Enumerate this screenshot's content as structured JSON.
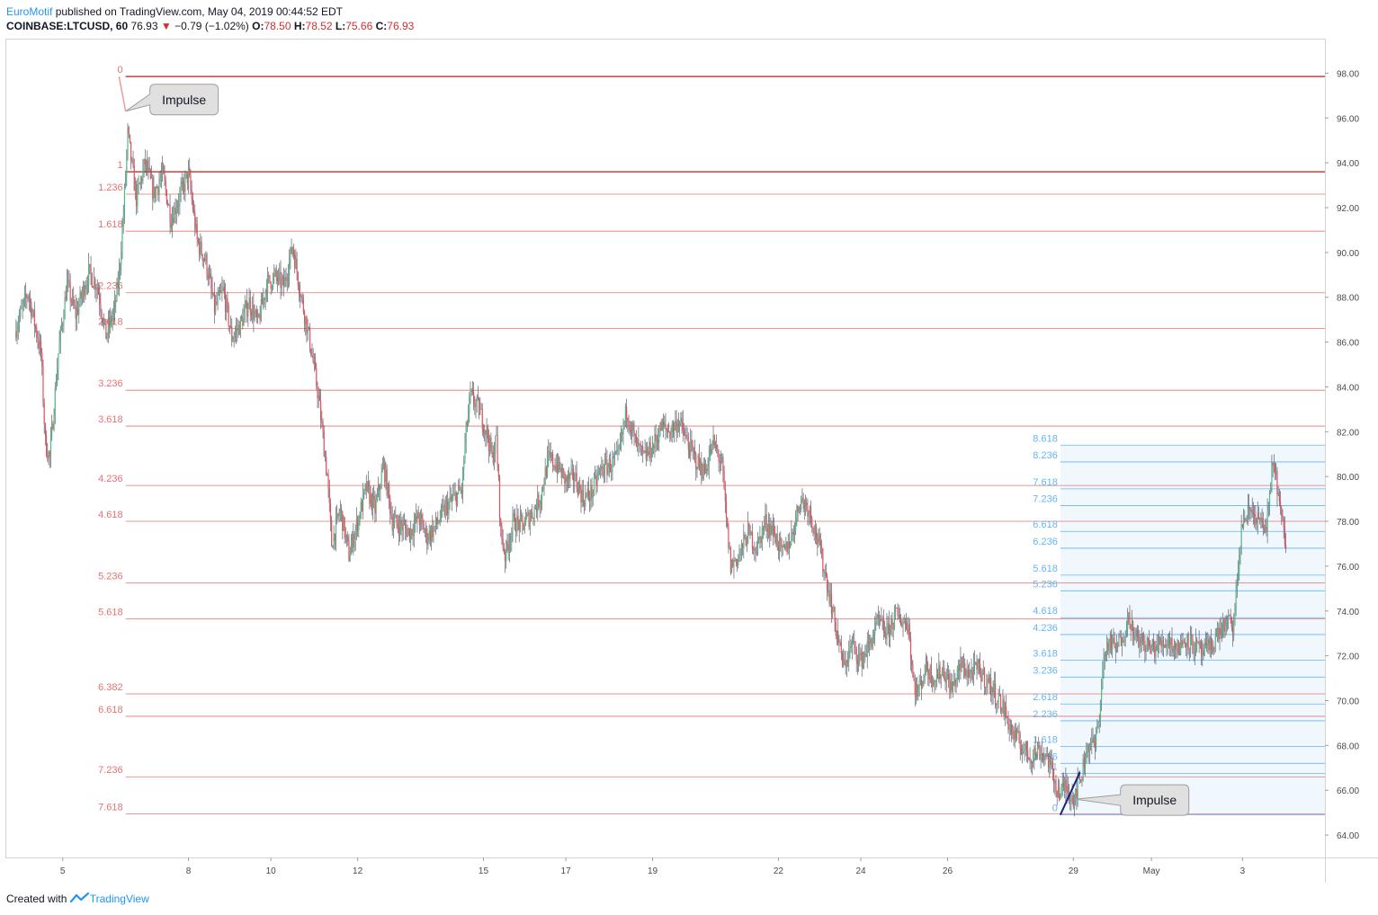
{
  "header": {
    "author": "EuroMotif",
    "published": " published on TradingView.com, May 04, 2019 00:44:52 EDT",
    "symbol": "COINBASE:LTCUSD, 60",
    "last": "76.93",
    "change": "−0.79 (−1.02%)",
    "o_label": "O:",
    "o_val": "78.50",
    "h_label": "H:",
    "h_val": "78.52",
    "l_label": "L:",
    "l_val": "75.66",
    "c_label": "C:",
    "c_val": "76.93",
    "down_arrow": "▼"
  },
  "footer": {
    "created_with": "Created with",
    "brand": "TradingView"
  },
  "chart_data": {
    "type": "candlestick",
    "symbol": "COINBASE:LTCUSD",
    "interval": "60",
    "ylim": [
      63,
      99.5
    ],
    "xlim": [
      -2,
      302
    ],
    "y_ticks": [
      64,
      66,
      68,
      70,
      72,
      74,
      76,
      78,
      80,
      82,
      84,
      86,
      88,
      90,
      92,
      94,
      96,
      98
    ],
    "y_tick_labels": [
      "64.00",
      "66.00",
      "68.00",
      "70.00",
      "72.00",
      "74.00",
      "76.00",
      "78.00",
      "80.00",
      "82.00",
      "84.00",
      "86.00",
      "88.00",
      "90.00",
      "92.00",
      "94.00",
      "96.00",
      "98.00"
    ],
    "x_ticks": [
      {
        "t": 11,
        "label": "5"
      },
      {
        "t": 40,
        "label": "8"
      },
      {
        "t": 59,
        "label": "10"
      },
      {
        "t": 79,
        "label": "12"
      },
      {
        "t": 108,
        "label": "15"
      },
      {
        "t": 127,
        "label": "17"
      },
      {
        "t": 147,
        "label": "19"
      },
      {
        "t": 176,
        "label": "22"
      },
      {
        "t": 195,
        "label": "24"
      },
      {
        "t": 215,
        "label": "26"
      },
      {
        "t": 244,
        "label": "29"
      },
      {
        "t": 262,
        "label": "May"
      },
      {
        "t": 283,
        "label": "3"
      }
    ],
    "colors": {
      "up": "#53b987",
      "down": "#eb4d5c",
      "fib_red": "#e57373",
      "fib_blue": "#64b5f6",
      "trend": "#1a237e"
    },
    "price_path": [
      [
        0,
        86.5
      ],
      [
        3,
        88.2
      ],
      [
        6,
        85.5
      ],
      [
        7,
        81.5
      ],
      [
        8,
        80.8
      ],
      [
        10,
        85.5
      ],
      [
        12,
        88.6
      ],
      [
        14,
        87.2
      ],
      [
        17,
        89.1
      ],
      [
        19,
        88.5
      ],
      [
        21,
        86.3
      ],
      [
        23,
        87.5
      ],
      [
        24,
        89.0
      ],
      [
        25,
        91.7
      ],
      [
        26,
        95.3
      ],
      [
        27,
        93.8
      ],
      [
        28,
        92.4
      ],
      [
        30,
        94.0
      ],
      [
        32,
        92.6
      ],
      [
        34,
        93.5
      ],
      [
        36,
        91.5
      ],
      [
        38,
        92.5
      ],
      [
        40,
        93.5
      ],
      [
        42,
        90.5
      ],
      [
        44,
        89.6
      ],
      [
        46,
        87.5
      ],
      [
        48,
        88.3
      ],
      [
        50,
        86.2
      ],
      [
        52,
        86.8
      ],
      [
        54,
        87.8
      ],
      [
        56,
        86.8
      ],
      [
        58,
        88.6
      ],
      [
        60,
        88.9
      ],
      [
        62,
        88.5
      ],
      [
        64,
        90.3
      ],
      [
        66,
        88.0
      ],
      [
        68,
        86.0
      ],
      [
        70,
        83.5
      ],
      [
        72,
        80.0
      ],
      [
        73,
        77.0
      ],
      [
        75,
        78.5
      ],
      [
        77,
        76.5
      ],
      [
        79,
        78.0
      ],
      [
        81,
        79.5
      ],
      [
        83,
        78.5
      ],
      [
        85,
        80.5
      ],
      [
        87,
        78.0
      ],
      [
        89,
        77.8
      ],
      [
        91,
        77.5
      ],
      [
        93,
        78.2
      ],
      [
        95,
        77.3
      ],
      [
        97,
        77.8
      ],
      [
        99,
        78.5
      ],
      [
        101,
        79.0
      ],
      [
        103,
        79.4
      ],
      [
        104,
        82.0
      ],
      [
        105,
        83.6
      ],
      [
        107,
        83.0
      ],
      [
        109,
        81.8
      ],
      [
        110,
        80.8
      ],
      [
        111,
        81.7
      ],
      [
        112,
        77.5
      ],
      [
        113,
        76.5
      ],
      [
        115,
        78.0
      ],
      [
        117,
        77.8
      ],
      [
        119,
        78.3
      ],
      [
        121,
        79.0
      ],
      [
        123,
        80.8
      ],
      [
        125,
        80.5
      ],
      [
        127,
        79.8
      ],
      [
        129,
        80.0
      ],
      [
        131,
        79.0
      ],
      [
        133,
        79.3
      ],
      [
        135,
        80.3
      ],
      [
        137,
        80.5
      ],
      [
        139,
        80.8
      ],
      [
        141,
        83.0
      ],
      [
        143,
        81.5
      ],
      [
        145,
        80.8
      ],
      [
        147,
        81.3
      ],
      [
        149,
        82.2
      ],
      [
        151,
        82.0
      ],
      [
        153,
        82.5
      ],
      [
        155,
        81.5
      ],
      [
        157,
        80.7
      ],
      [
        159,
        80.2
      ],
      [
        161,
        81.5
      ],
      [
        163,
        80.5
      ],
      [
        164,
        78.0
      ],
      [
        165,
        76.0
      ],
      [
        167,
        76.5
      ],
      [
        169,
        77.5
      ],
      [
        171,
        76.8
      ],
      [
        173,
        78.0
      ],
      [
        175,
        77.5
      ],
      [
        177,
        76.5
      ],
      [
        179,
        77.3
      ],
      [
        181,
        79.0
      ],
      [
        183,
        78.6
      ],
      [
        185,
        77.2
      ],
      [
        187,
        75.5
      ],
      [
        189,
        73.5
      ],
      [
        191,
        71.5
      ],
      [
        193,
        72.5
      ],
      [
        195,
        71.8
      ],
      [
        197,
        72.5
      ],
      [
        199,
        73.5
      ],
      [
        201,
        73.0
      ],
      [
        203,
        73.8
      ],
      [
        205,
        73.5
      ],
      [
        206,
        73.4
      ],
      [
        207,
        71.0
      ],
      [
        208,
        70.3
      ],
      [
        210,
        71.5
      ],
      [
        212,
        71.0
      ],
      [
        214,
        71.4
      ],
      [
        216,
        70.5
      ],
      [
        218,
        71.6
      ],
      [
        220,
        71.2
      ],
      [
        222,
        71.4
      ],
      [
        224,
        70.9
      ],
      [
        226,
        70.3
      ],
      [
        228,
        69.6
      ],
      [
        230,
        68.5
      ],
      [
        232,
        68.0
      ],
      [
        234,
        67.5
      ],
      [
        236,
        67.8
      ],
      [
        238,
        67.5
      ],
      [
        240,
        66.2
      ],
      [
        241,
        65.8
      ],
      [
        242,
        66.2
      ],
      [
        244,
        65.7
      ],
      [
        245,
        66.2
      ],
      [
        246,
        66.8
      ],
      [
        247,
        67.8
      ],
      [
        248,
        68.2
      ],
      [
        249,
        67.9
      ],
      [
        250,
        69.5
      ],
      [
        251,
        71.8
      ],
      [
        252,
        72.6
      ],
      [
        254,
        72.3
      ],
      [
        256,
        73.3
      ],
      [
        257,
        73.8
      ],
      [
        258,
        72.8
      ],
      [
        260,
        72.6
      ],
      [
        262,
        72.3
      ],
      [
        264,
        72.5
      ],
      [
        266,
        72.7
      ],
      [
        268,
        72.3
      ],
      [
        270,
        72.8
      ],
      [
        272,
        72.4
      ],
      [
        274,
        72.1
      ],
      [
        276,
        72.5
      ],
      [
        278,
        73.2
      ],
      [
        280,
        73.5
      ],
      [
        281,
        73.2
      ],
      [
        282,
        76.0
      ],
      [
        283,
        78.0
      ],
      [
        285,
        78.5
      ],
      [
        287,
        78.0
      ],
      [
        288,
        77.6
      ],
      [
        289,
        78.3
      ],
      [
        290,
        80.8
      ],
      [
        291,
        79.6
      ],
      [
        292,
        78.0
      ],
      [
        293,
        76.93
      ]
    ],
    "fib_red": {
      "price_0": 97.85,
      "price_1": 93.6,
      "levels": [
        {
          "label": "0",
          "price": 97.85
        },
        {
          "label": "1",
          "price": 93.6
        },
        {
          "label": "1.236",
          "price": 92.6
        },
        {
          "label": "1.618",
          "price": 90.95
        },
        {
          "label": "2.236",
          "price": 88.2
        },
        {
          "label": "2.618",
          "price": 86.6
        },
        {
          "label": "3.236",
          "price": 83.85
        },
        {
          "label": "3.618",
          "price": 82.25
        },
        {
          "label": "4.236",
          "price": 79.6
        },
        {
          "label": "4.618",
          "price": 78.0
        },
        {
          "label": "5.236",
          "price": 75.25
        },
        {
          "label": "5.618",
          "price": 73.65
        },
        {
          "label": "6.382",
          "price": 70.3
        },
        {
          "label": "6.618",
          "price": 69.3
        },
        {
          "label": "7.236",
          "price": 66.6
        },
        {
          "label": "7.618",
          "price": 64.95
        }
      ]
    },
    "fib_blue": {
      "levels": [
        {
          "label": "0",
          "price": 64.9
        },
        {
          "label": "1",
          "price": 66.75
        },
        {
          "label": "1.236",
          "price": 67.2
        },
        {
          "label": "1.618",
          "price": 67.95
        },
        {
          "label": "2.236",
          "price": 69.1
        },
        {
          "label": "2.618",
          "price": 69.85
        },
        {
          "label": "3.236",
          "price": 71.05
        },
        {
          "label": "3.618",
          "price": 71.8
        },
        {
          "label": "4.236",
          "price": 72.95
        },
        {
          "label": "4.618",
          "price": 73.7
        },
        {
          "label": "5.236",
          "price": 74.9
        },
        {
          "label": "5.618",
          "price": 75.6
        },
        {
          "label": "6.236",
          "price": 76.8
        },
        {
          "label": "6.618",
          "price": 77.55
        },
        {
          "label": "7.236",
          "price": 78.7
        },
        {
          "label": "7.618",
          "price": 79.45
        },
        {
          "label": "8.236",
          "price": 80.65
        },
        {
          "label": "8.618",
          "price": 81.4
        }
      ]
    },
    "callouts": [
      {
        "label": "Impulse",
        "anchor_t": 25.5,
        "anchor_price": 96.3
      },
      {
        "label": "Impulse",
        "anchor_t": 244.5,
        "anchor_price": 65.6
      }
    ],
    "impulse_line": {
      "t1": 241,
      "p1": 64.9,
      "t2": 245.5,
      "p2": 66.8
    }
  }
}
